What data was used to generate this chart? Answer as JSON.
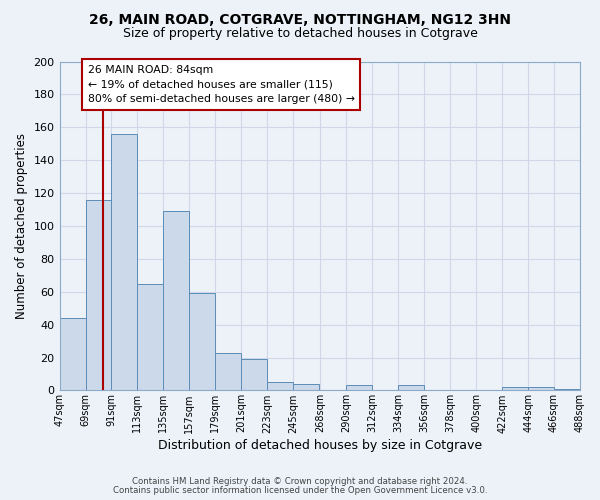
{
  "title": "26, MAIN ROAD, COTGRAVE, NOTTINGHAM, NG12 3HN",
  "subtitle": "Size of property relative to detached houses in Cotgrave",
  "xlabel": "Distribution of detached houses by size in Cotgrave",
  "ylabel": "Number of detached properties",
  "bar_color": "#ccd9ea",
  "bar_edge_color": "#5b8db8",
  "background_color": "#edf2f9",
  "grid_color": "#d0d8e8",
  "vline_x": 84,
  "vline_color": "#aa0000",
  "bin_edges": [
    47,
    69,
    91,
    113,
    135,
    157,
    179,
    201,
    223,
    245,
    268,
    290,
    312,
    334,
    356,
    378,
    400,
    422,
    444,
    466,
    488
  ],
  "bin_labels": [
    "47sqm",
    "69sqm",
    "91sqm",
    "113sqm",
    "135sqm",
    "157sqm",
    "179sqm",
    "201sqm",
    "223sqm",
    "245sqm",
    "268sqm",
    "290sqm",
    "312sqm",
    "334sqm",
    "356sqm",
    "378sqm",
    "400sqm",
    "422sqm",
    "444sqm",
    "466sqm",
    "488sqm"
  ],
  "bar_heights": [
    44,
    116,
    156,
    65,
    109,
    59,
    23,
    19,
    5,
    4,
    0,
    3,
    0,
    3,
    0,
    0,
    0,
    2,
    2,
    1
  ],
  "annotation_title": "26 MAIN ROAD: 84sqm",
  "annotation_line1": "← 19% of detached houses are smaller (115)",
  "annotation_line2": "80% of semi-detached houses are larger (480) →",
  "ylim": [
    0,
    200
  ],
  "yticks": [
    0,
    20,
    40,
    60,
    80,
    100,
    120,
    140,
    160,
    180,
    200
  ],
  "footer1": "Contains HM Land Registry data © Crown copyright and database right 2024.",
  "footer2": "Contains public sector information licensed under the Open Government Licence v3.0."
}
